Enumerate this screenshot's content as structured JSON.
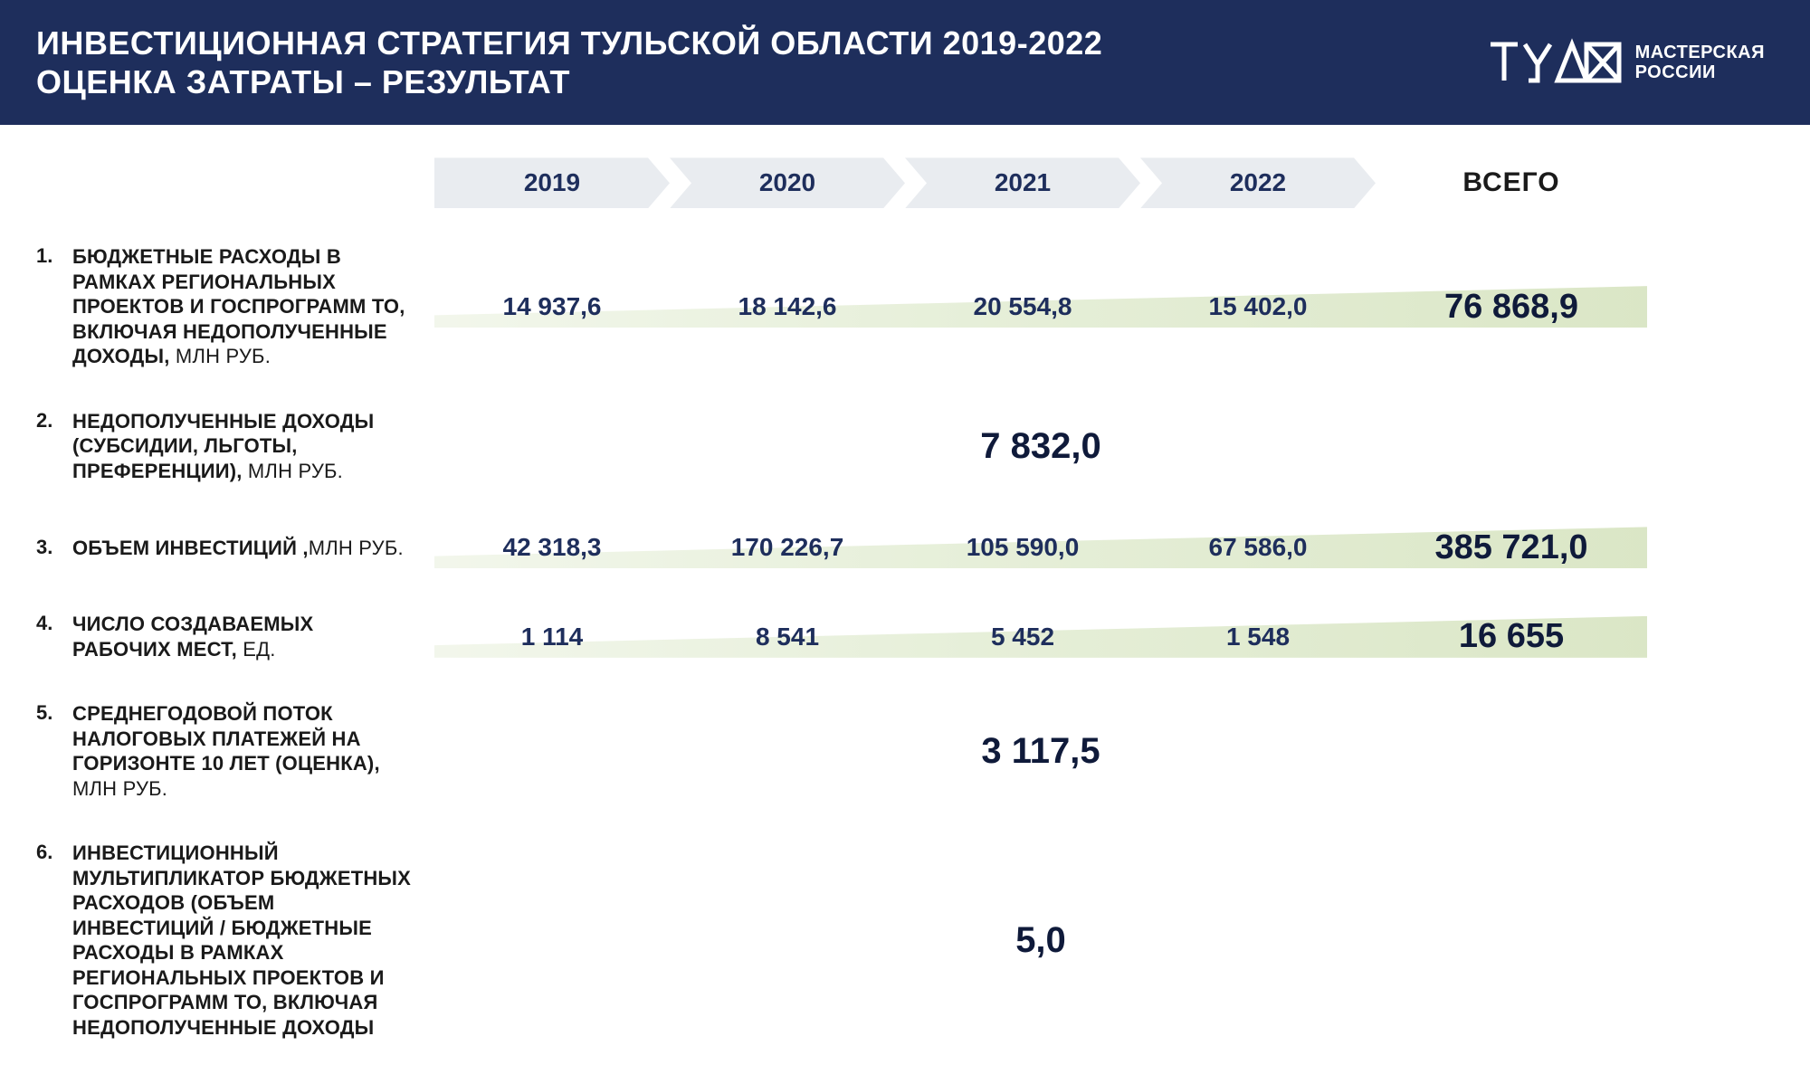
{
  "header": {
    "title_line1": "ИНВЕСТИЦИОННАЯ СТРАТЕГИЯ ТУЛЬСКОЙ ОБЛАСТИ 2019-2022",
    "title_line2": "ОЦЕНКА  ЗАТРАТЫ – РЕЗУЛЬТАТ",
    "logo_line1": "МАСТЕРСКАЯ",
    "logo_line2": "РОССИИ"
  },
  "colors": {
    "header_bg": "#1e2e5c",
    "text_dark": "#1a1a1a",
    "accent": "#1e2e5c",
    "chevron_bg": "#e9ecf0",
    "wedge_start": "#f0f5e8",
    "wedge_end": "#d4e2bc"
  },
  "year_headers": [
    "2019",
    "2020",
    "2021",
    "2022"
  ],
  "total_header": "ВСЕГО",
  "rows": [
    {
      "n": "1.",
      "label": "БЮДЖЕТНЫЕ РАСХОДЫ В РАМКАХ РЕГИОНАЛЬНЫХ ПРОЕКТОВ И ГОСПРОГРАММ ТО, ВКЛЮЧАЯ НЕДОПОЛУЧЕННЫЕ ДОХОДЫ,",
      "unit": " МЛН РУБ.",
      "type": "yearly",
      "values": [
        "14 937,6",
        "18 142,6",
        "20 554,8",
        "15 402,0"
      ],
      "total": "76 868,9",
      "wedge": true
    },
    {
      "n": "2.",
      "label": "НЕДОПОЛУЧЕННЫЕ ДОХОДЫ (СУБСИДИИ, ЛЬГОТЫ, ПРЕФЕРЕНЦИИ),",
      "unit": " МЛН РУБ.",
      "type": "single",
      "single": "7 832,0"
    },
    {
      "n": "3.",
      "label": "ОБЪЕМ ИНВЕСТИЦИЙ ,",
      "unit": "МЛН РУБ.",
      "type": "yearly",
      "values": [
        "42 318,3",
        "170 226,7",
        "105 590,0",
        "67 586,0"
      ],
      "total": "385 721,0",
      "wedge": true
    },
    {
      "n": "4.",
      "label": "ЧИСЛО СОЗДАВАЕМЫХ РАБОЧИХ МЕСТ,",
      "unit": " ЕД.",
      "type": "yearly",
      "values": [
        "1 114",
        "8 541",
        "5 452",
        "1 548"
      ],
      "total": "16 655",
      "wedge": true
    },
    {
      "n": "5.",
      "label": "СРЕДНЕГОДОВОЙ ПОТОК НАЛОГОВЫХ ПЛАТЕЖЕЙ НА ГОРИЗОНТЕ 10 ЛЕТ (ОЦЕНКА),",
      "unit": " МЛН РУБ.",
      "type": "single",
      "single": "3 117,5"
    },
    {
      "n": "6.",
      "label": "ИНВЕСТИЦИОННЫЙ МУЛЬТИПЛИКАТОР БЮДЖЕТНЫХ РАСХОДОВ (ОБЪЕМ ИНВЕСТИЦИЙ / БЮДЖЕТНЫЕ РАСХОДЫ В РАМКАХ РЕГИОНАЛЬНЫХ ПРОЕКТОВ И ГОСПРОГРАММ ТО, ВКЛЮЧАЯ  НЕДОПОЛУЧЕННЫЕ ДОХОДЫ",
      "unit": "",
      "type": "single",
      "single": "5,0"
    }
  ]
}
